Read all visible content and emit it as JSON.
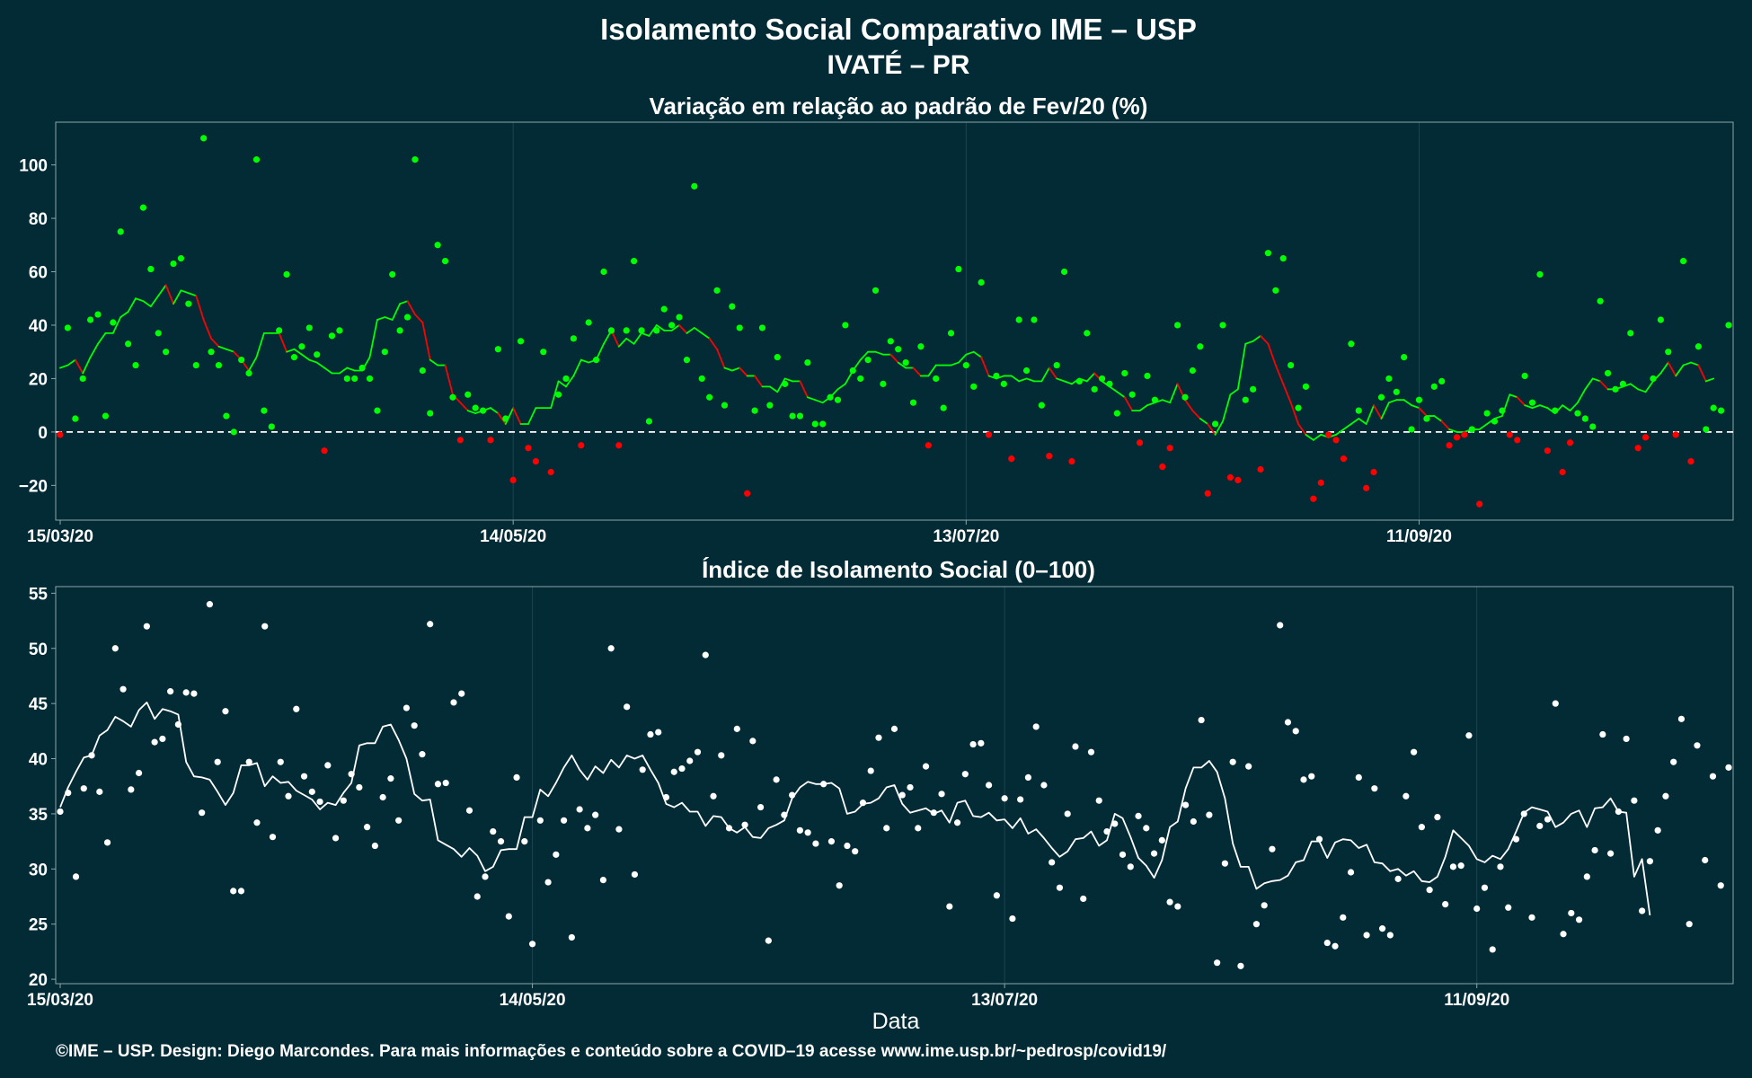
{
  "title": "Isolamento Social Comparativo IME – USP",
  "subtitle": "IVATÉ – PR",
  "xlabel": "Data",
  "caption": "©IME – USP. Design: Diego Marcondes. Para mais informações e conteúdo sobre a COVID–19 acesse www.ime.usp.br/~pedrosp/covid19/",
  "colors": {
    "background": "#022b36",
    "positive": "#00ff00",
    "negative": "#ff0000",
    "index": "#ffffff",
    "panel_border": "#8fa5ab"
  },
  "chart_data": [
    {
      "type": "scatter",
      "title": "Variação em relação ao padrão de Fev/20 (%)",
      "x_tick_labels": [
        "15/03/20",
        "14/05/20",
        "13/07/20",
        "11/09/20"
      ],
      "y_ticks": [
        -20,
        0,
        20,
        40,
        60,
        80,
        100
      ],
      "ylim": [
        -33,
        116
      ],
      "reference_line": 0,
      "x_start": "15/03/20",
      "x_end": "14/10/20",
      "points": [
        -1,
        39,
        5,
        20,
        42,
        44,
        6,
        41,
        75,
        33,
        25,
        84,
        61,
        37,
        30,
        63,
        65,
        48,
        25,
        110,
        30,
        25,
        6,
        0,
        27,
        22,
        102,
        8,
        2,
        38,
        59,
        28,
        32,
        39,
        29,
        -7,
        36,
        38,
        20,
        20,
        24,
        20,
        8,
        30,
        59,
        38,
        43,
        102,
        23,
        7,
        70,
        64,
        13,
        -3,
        14,
        9,
        8,
        -3,
        31,
        5,
        -18,
        34,
        -6,
        -11,
        30,
        -15,
        14,
        20,
        35,
        -5,
        41,
        27,
        60,
        38,
        -5,
        38,
        64,
        38,
        4,
        38,
        46,
        40,
        43,
        27,
        92,
        20,
        13,
        53,
        10,
        47,
        39,
        -23,
        8,
        39,
        10,
        28,
        18,
        6,
        6,
        26,
        3,
        3,
        13,
        12,
        40,
        23,
        20,
        27,
        53,
        18,
        34,
        31,
        26,
        11,
        32,
        -5,
        20,
        9,
        37,
        61,
        25,
        17,
        56,
        -1,
        21,
        18,
        -10,
        42,
        23,
        42,
        10,
        -9,
        25,
        60,
        -11,
        19,
        37,
        16,
        20,
        18,
        7,
        22,
        14,
        -4,
        21,
        12,
        -13,
        -6,
        40,
        13,
        23,
        32,
        -23,
        3,
        40,
        -17,
        -18,
        12,
        16,
        -14,
        67,
        53,
        65,
        25,
        9,
        17,
        -25,
        -19,
        -1,
        -3,
        -10,
        33,
        8,
        -21,
        -15,
        13,
        20,
        15,
        28,
        1,
        12,
        5,
        17,
        19,
        -5,
        -2,
        -1,
        1,
        -27,
        7,
        4,
        8,
        -1,
        -3,
        21,
        11,
        59,
        -7,
        8,
        -15,
        -4,
        7,
        5,
        2,
        49,
        22,
        16,
        18,
        37,
        -6,
        -2,
        20,
        42,
        30,
        -1,
        64,
        -11,
        32,
        1,
        9,
        8,
        40
      ],
      "moving_average": [
        24,
        25,
        27,
        22,
        28,
        33,
        37,
        37,
        43,
        45,
        50,
        49,
        47,
        51,
        55,
        48,
        53,
        52,
        51,
        42,
        35,
        32,
        31,
        30,
        27,
        23,
        28,
        37,
        37,
        37,
        30,
        31,
        29,
        27,
        26,
        24,
        22,
        22,
        24,
        23,
        23,
        28,
        42,
        43,
        42,
        48,
        49,
        44,
        41,
        27,
        25,
        25,
        14,
        11,
        8,
        7,
        8,
        9,
        7,
        3,
        9,
        3,
        3,
        9,
        9,
        9,
        19,
        17,
        21,
        27,
        26,
        27,
        33,
        38,
        32,
        35,
        33,
        37,
        36,
        40,
        38,
        38,
        40,
        37,
        39,
        37,
        35,
        31,
        24,
        23,
        24,
        21,
        21,
        17,
        17,
        15,
        20,
        19,
        19,
        13,
        12,
        11,
        13,
        16,
        18,
        23,
        27,
        30,
        30,
        29,
        29,
        26,
        24,
        24,
        21,
        21,
        25,
        25,
        25,
        26,
        29,
        30,
        28,
        21,
        20,
        21,
        21,
        19,
        20,
        19,
        19,
        24,
        20,
        19,
        18,
        20,
        19,
        22,
        19,
        17,
        15,
        13,
        8,
        8,
        10,
        11,
        12,
        11,
        18,
        12,
        8,
        5,
        3,
        -1,
        4,
        14,
        16,
        33,
        34,
        36,
        33,
        25,
        18,
        11,
        3,
        -1,
        -3,
        -1,
        -2,
        -1,
        1,
        3,
        5,
        3,
        10,
        5,
        11,
        12,
        12,
        10,
        9,
        6,
        6,
        4,
        1,
        0,
        0,
        1,
        1,
        3,
        5,
        6,
        14,
        13,
        10,
        9,
        10,
        9,
        7,
        10,
        8,
        11,
        16,
        20,
        19,
        16,
        16,
        17,
        18,
        16,
        15,
        19,
        22,
        26,
        21,
        25,
        26,
        25,
        19,
        20
      ]
    },
    {
      "type": "scatter",
      "title": "Índice de Isolamento Social (0–100)",
      "x_tick_labels": [
        "15/03/20",
        "14/05/20",
        "13/07/20",
        "11/09/20"
      ],
      "y_ticks": [
        20,
        25,
        30,
        35,
        40,
        45,
        50,
        55
      ],
      "ylim": [
        19.6,
        55.6
      ],
      "x_start": "15/03/20",
      "x_end": "14/10/20",
      "points": [
        35.2,
        36.9,
        29.3,
        37.3,
        40.3,
        37.0,
        32.4,
        50.0,
        46.3,
        37.2,
        38.7,
        52.0,
        41.5,
        41.8,
        46.1,
        43.1,
        46.0,
        45.9,
        35.1,
        54.0,
        39.7,
        44.3,
        28.0,
        28.0,
        39.7,
        34.2,
        52.0,
        32.9,
        39.7,
        36.6,
        44.5,
        38.4,
        37.0,
        36.1,
        39.4,
        32.8,
        36.2,
        38.6,
        37.4,
        33.8,
        32.1,
        36.5,
        38.2,
        34.4,
        44.6,
        43.0,
        40.4,
        52.2,
        37.7,
        37.8,
        45.1,
        45.9,
        35.3,
        27.5,
        29.3,
        33.4,
        32.5,
        25.7,
        38.3,
        32.5,
        23.2,
        34.4,
        28.8,
        31.3,
        34.4,
        23.8,
        35.4,
        33.7,
        34.9,
        29.0,
        50.0,
        33.6,
        44.7,
        29.5,
        39.0,
        42.2,
        42.4,
        36.5,
        38.8,
        39.1,
        39.8,
        40.6,
        49.4,
        36.6,
        40.3,
        33.7,
        42.7,
        34.0,
        41.6,
        35.6,
        23.5,
        38.1,
        34.9,
        36.7,
        33.5,
        33.3,
        32.3,
        37.7,
        32.5,
        28.5,
        32.1,
        31.6,
        36.0,
        38.9,
        41.9,
        33.7,
        42.7,
        36.7,
        37.4,
        33.7,
        39.3,
        35.1,
        36.8,
        26.6,
        34.2,
        38.6,
        41.3,
        41.4,
        37.6,
        27.6,
        36.4,
        25.5,
        36.3,
        38.3,
        42.9,
        37.6,
        30.6,
        28.3,
        35.0,
        41.1,
        27.3,
        40.6,
        36.2,
        33.4,
        34.1,
        31.3,
        30.2,
        34.8,
        33.7,
        31.4,
        32.6,
        27.0,
        26.6,
        35.8,
        34.3,
        43.5,
        34.9,
        21.5,
        30.5,
        39.7,
        21.2,
        39.3,
        25.0,
        26.7,
        31.8,
        52.1,
        43.3,
        42.5,
        38.1,
        38.4,
        32.7,
        23.3,
        23.0,
        25.6,
        29.7,
        38.3,
        24.0,
        37.3,
        24.6,
        24.0,
        29.1,
        36.6,
        40.6,
        33.8,
        28.1,
        34.7,
        26.8,
        30.2,
        30.3,
        42.1,
        26.4,
        28.3,
        22.7,
        30.2,
        26.5,
        32.7,
        35.0,
        25.6,
        33.9,
        34.5,
        45.0,
        24.1,
        26.0,
        25.4,
        29.3,
        31.7,
        42.2,
        31.4,
        35.2,
        41.8,
        36.2,
        26.2,
        30.7,
        33.5,
        36.6,
        39.7,
        43.6,
        25.0,
        41.2,
        30.8,
        38.4,
        28.5,
        39.2
      ],
      "moving_average": [
        35.6,
        37.4,
        38.8,
        40.1,
        40.3,
        42.1,
        42.6,
        43.8,
        43.4,
        42.9,
        44.4,
        45.1,
        43.6,
        44.5,
        44.3,
        44.0,
        39.7,
        38.4,
        38.3,
        38.1,
        37.0,
        35.8,
        36.9,
        39.4,
        39.4,
        39.6,
        37.5,
        38.4,
        37.8,
        37.9,
        37.1,
        36.7,
        36.3,
        35.4,
        36.0,
        35.8,
        36.9,
        37.8,
        41.2,
        41.4,
        41.4,
        42.9,
        43.1,
        41.7,
        40.0,
        36.8,
        36.2,
        36.3,
        32.6,
        32.2,
        31.8,
        31.1,
        31.9,
        31.2,
        29.8,
        30.2,
        31.7,
        31.8,
        31.8,
        34.7,
        34.7,
        37.2,
        36.6,
        37.8,
        39.2,
        40.3,
        39.0,
        38.1,
        39.3,
        38.7,
        39.9,
        39.2,
        40.3,
        40.0,
        40.3,
        39.0,
        37.8,
        35.9,
        35.6,
        36.0,
        35.2,
        35.2,
        33.9,
        34.8,
        34.7,
        33.7,
        33.3,
        33.8,
        32.9,
        32.8,
        33.7,
        34.0,
        34.4,
        36.4,
        37.4,
        37.9,
        37.7,
        37.7,
        37.8,
        37.3,
        35.0,
        35.2,
        35.9,
        36.0,
        36.4,
        37.4,
        37.6,
        35.9,
        35.1,
        35.3,
        35.5,
        35.0,
        35.3,
        34.2,
        36.0,
        36.2,
        34.8,
        34.7,
        35.1,
        34.4,
        34.5,
        33.7,
        34.6,
        33.2,
        33.6,
        32.8,
        31.9,
        31.1,
        31.6,
        32.7,
        32.8,
        33.4,
        32.1,
        32.6,
        35.0,
        34.6,
        32.9,
        31.0,
        30.3,
        29.2,
        30.8,
        33.8,
        34.3,
        37.3,
        39.2,
        39.2,
        39.8,
        38.8,
        36.4,
        32.3,
        30.2,
        30.2,
        28.2,
        28.7,
        28.9,
        29.0,
        29.4,
        30.6,
        30.8,
        32.5,
        32.5,
        31.0,
        32.4,
        32.7,
        32.6,
        31.9,
        32.2,
        30.6,
        30.5,
        29.8,
        30.0,
        29.4,
        29.8,
        28.9,
        28.8,
        29.3,
        31.1,
        33.5,
        32.8,
        32.1,
        30.9,
        30.6,
        31.2,
        30.9,
        31.8,
        33.4,
        35.1,
        35.6,
        35.4,
        35.2,
        33.8,
        34.2,
        35.0,
        35.3,
        33.8,
        35.5,
        35.6,
        36.4,
        35.2,
        35.1,
        29.3,
        30.9,
        25.8
      ]
    }
  ]
}
